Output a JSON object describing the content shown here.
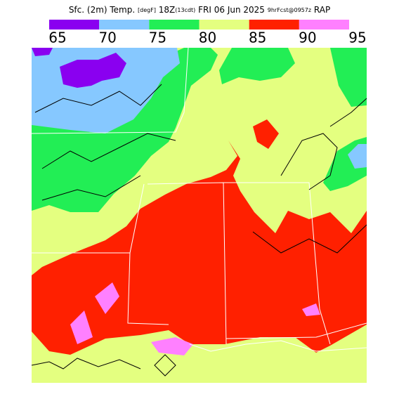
{
  "header": {
    "title_parts": [
      "Sfc. (2m) Temp.",
      "[degF]",
      "18Z",
      "(13cdt)",
      "FRI 06 Jun 2025",
      "9hrFcst@0957z",
      "RAP"
    ]
  },
  "legend": {
    "ticks": [
      65,
      70,
      75,
      80,
      85,
      90,
      95
    ],
    "colors": [
      "#8a00f0",
      "#86c8ff",
      "#22ee55",
      "#e4ff80",
      "#ff2000",
      "#ff80ff"
    ]
  }
}
